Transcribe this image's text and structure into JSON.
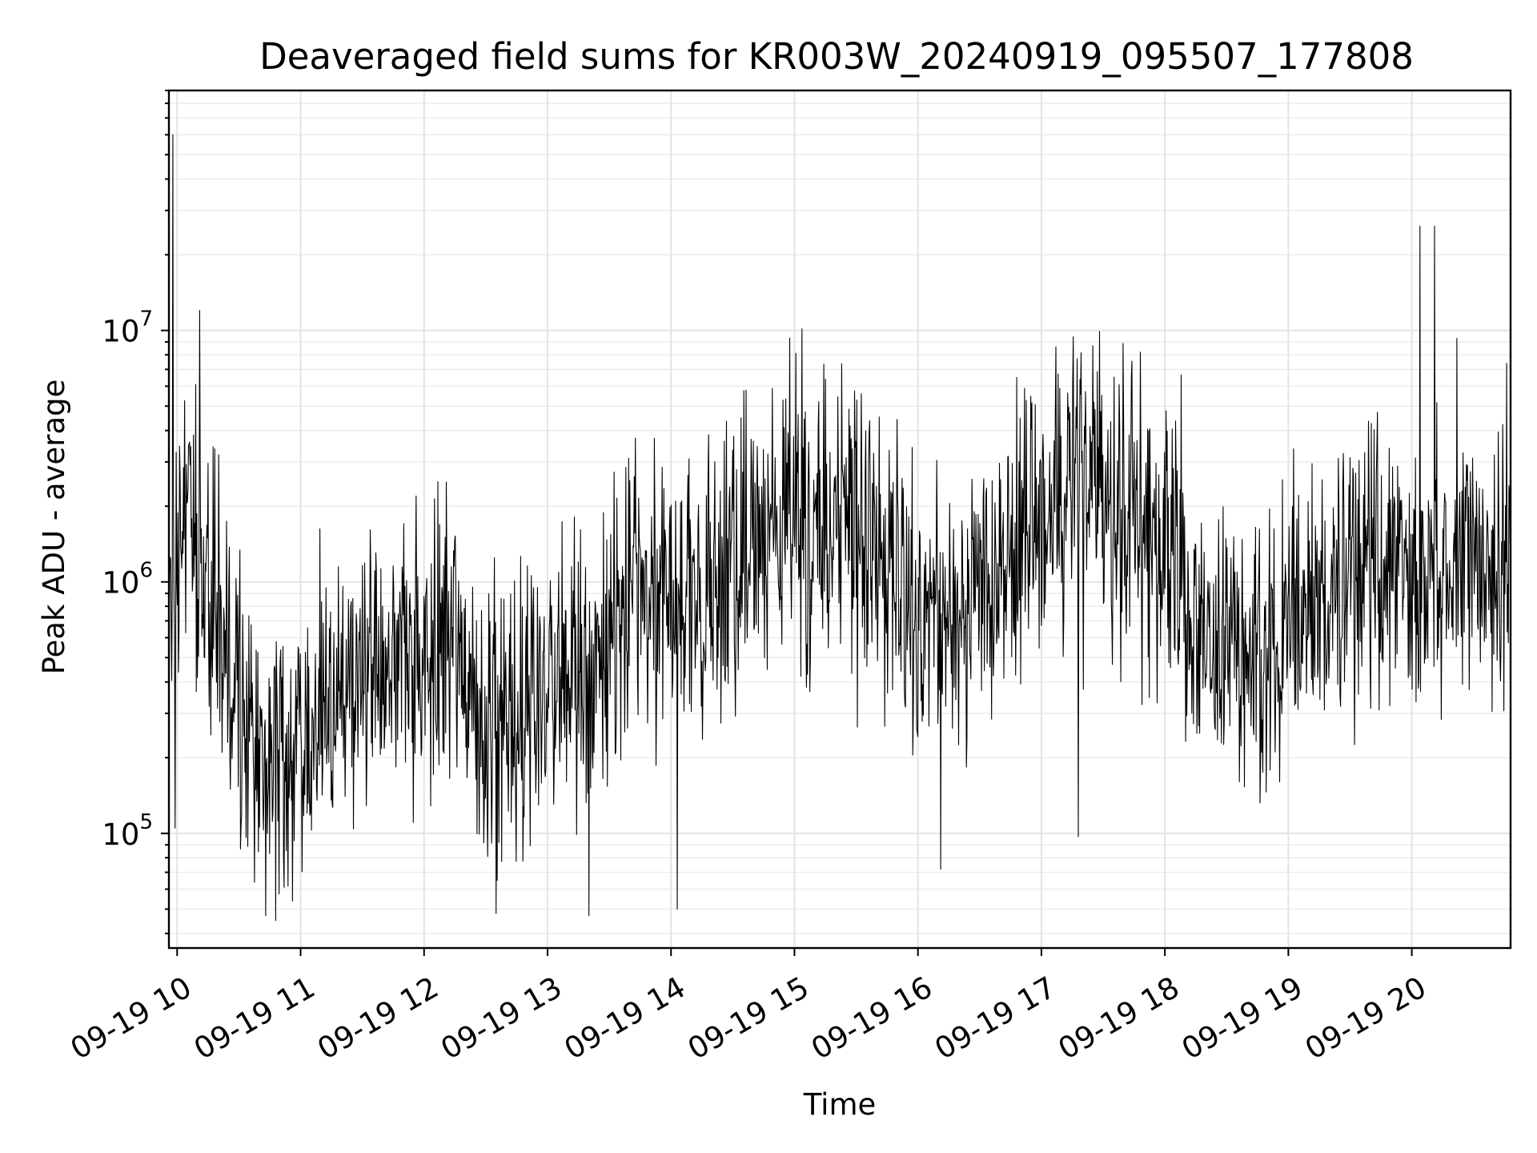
{
  "chart_data": {
    "type": "line",
    "title": "Deaveraged field sums for KR003W_20240919_095507_177808",
    "xlabel": "Time",
    "ylabel": "Peak ADU - average",
    "yscale": "log",
    "ylim": [
      35000,
      90000000
    ],
    "xlim": [
      "2024-09-19T09:56:00",
      "2024-09-19T20:48:00"
    ],
    "grid": true,
    "line_color": "#000000",
    "x_ticks": [
      {
        "at": "2024-09-19T10:00:00",
        "label": "09-19 10"
      },
      {
        "at": "2024-09-19T11:00:00",
        "label": "09-19 11"
      },
      {
        "at": "2024-09-19T12:00:00",
        "label": "09-19 12"
      },
      {
        "at": "2024-09-19T13:00:00",
        "label": "09-19 13"
      },
      {
        "at": "2024-09-19T14:00:00",
        "label": "09-19 14"
      },
      {
        "at": "2024-09-19T15:00:00",
        "label": "09-19 15"
      },
      {
        "at": "2024-09-19T16:00:00",
        "label": "09-19 16"
      },
      {
        "at": "2024-09-19T17:00:00",
        "label": "09-19 17"
      },
      {
        "at": "2024-09-19T18:00:00",
        "label": "09-19 18"
      },
      {
        "at": "2024-09-19T19:00:00",
        "label": "09-19 19"
      },
      {
        "at": "2024-09-19T20:00:00",
        "label": "09-19 20"
      }
    ],
    "y_ticks": [
      {
        "value": 100000,
        "base": "10",
        "exp": "5"
      },
      {
        "value": 1000000,
        "base": "10",
        "exp": "6"
      },
      {
        "value": 10000000,
        "base": "10",
        "exp": "7"
      }
    ],
    "envelope": {
      "time": [
        "2024-09-19T09:56:00",
        "2024-09-19T10:05:00",
        "2024-09-19T10:15:00",
        "2024-09-19T10:25:00",
        "2024-09-19T10:40:00",
        "2024-09-19T11:00:00",
        "2024-09-19T11:20:00",
        "2024-09-19T11:40:00",
        "2024-09-19T12:00:00",
        "2024-09-19T12:15:00",
        "2024-09-19T12:30:00",
        "2024-09-19T12:45:00",
        "2024-09-19T13:00:00",
        "2024-09-19T13:15:00",
        "2024-09-19T13:30:00",
        "2024-09-19T13:45:00",
        "2024-09-19T14:00:00",
        "2024-09-19T14:15:00",
        "2024-09-19T14:30:00",
        "2024-09-19T14:45:00",
        "2024-09-19T15:00:00",
        "2024-09-19T15:20:00",
        "2024-09-19T15:40:00",
        "2024-09-19T16:00:00",
        "2024-09-19T16:20:00",
        "2024-09-19T16:40:00",
        "2024-09-19T17:00:00",
        "2024-09-19T17:20:00",
        "2024-09-19T17:40:00",
        "2024-09-19T18:00:00",
        "2024-09-19T18:10:00",
        "2024-09-19T18:20:00",
        "2024-09-19T18:40:00",
        "2024-09-19T19:00:00",
        "2024-09-19T19:20:00",
        "2024-09-19T19:40:00",
        "2024-09-19T20:00:00",
        "2024-09-19T20:20:00",
        "2024-09-19T20:48:00"
      ],
      "median": [
        1500000,
        1500000,
        1000000,
        500000,
        200000,
        200000,
        350000,
        500000,
        550000,
        600000,
        250000,
        250000,
        330000,
        450000,
        600000,
        800000,
        900000,
        700000,
        1200000,
        1500000,
        1800000,
        2000000,
        1200000,
        700000,
        800000,
        1000000,
        2000000,
        2200000,
        2000000,
        1400000,
        800000,
        600000,
        500000,
        600000,
        900000,
        1200000,
        1000000,
        1100000,
        1500000
      ]
    },
    "peaks": [
      {
        "x": "2024-09-19T09:58:00",
        "y": 60000000
      },
      {
        "x": "2024-09-19T10:11:00",
        "y": 12000000
      },
      {
        "x": "2024-09-19T15:15:00",
        "y": 6400000
      },
      {
        "x": "2024-09-19T16:48:00",
        "y": 6500000
      },
      {
        "x": "2024-09-19T17:07:00",
        "y": 8600000
      },
      {
        "x": "2024-09-19T17:25:00",
        "y": 8700000
      },
      {
        "x": "2024-09-19T17:48:00",
        "y": 8200000
      },
      {
        "x": "2024-09-19T20:04:00",
        "y": 26000000
      },
      {
        "x": "2024-09-19T20:11:00",
        "y": 26000000
      },
      {
        "x": "2024-09-19T20:22:00",
        "y": 9300000
      },
      {
        "x": "2024-09-19T20:46:00",
        "y": 7400000
      }
    ],
    "dips": [
      {
        "x": "2024-09-19T09:59:00",
        "y": 105000
      },
      {
        "x": "2024-09-19T10:43:00",
        "y": 47000
      },
      {
        "x": "2024-09-19T10:48:00",
        "y": 45000
      },
      {
        "x": "2024-09-19T12:35:00",
        "y": 48000
      },
      {
        "x": "2024-09-19T13:20:00",
        "y": 47000
      },
      {
        "x": "2024-09-19T14:03:00",
        "y": 50000
      },
      {
        "x": "2024-09-19T16:11:00",
        "y": 72000
      },
      {
        "x": "2024-09-19T17:18:00",
        "y": 97000
      }
    ]
  }
}
